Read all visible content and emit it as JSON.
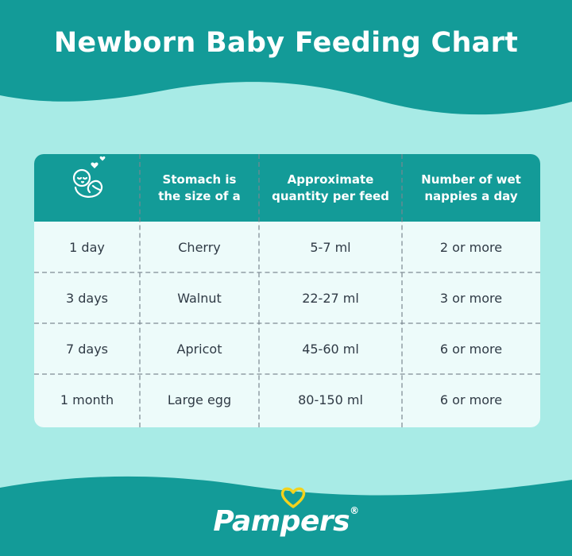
{
  "title": "Newborn Baby Feeding Chart",
  "colors": {
    "teal": "#139b98",
    "light_bg": "#a8ebe6",
    "card_bg": "#edfbfa",
    "text": "#2f3a45",
    "heart_yellow": "#f3d21d"
  },
  "table": {
    "header_icon": "baby-icon",
    "headers": [
      "Stomach is\nthe size of a",
      "Approximate\nquantity per feed",
      "Number of wet\nnappies a day"
    ],
    "rows": [
      {
        "age": "1 day",
        "stomach": "Cherry",
        "quantity": "5-7 ml",
        "nappies": "2 or more"
      },
      {
        "age": "3 days",
        "stomach": "Walnut",
        "quantity": "22-27 ml",
        "nappies": "3 or more"
      },
      {
        "age": "7 days",
        "stomach": "Apricot",
        "quantity": "45-60 ml",
        "nappies": "6 or more"
      },
      {
        "age": "1 month",
        "stomach": "Large egg",
        "quantity": "80-150 ml",
        "nappies": "6 or more"
      }
    ]
  },
  "brand": {
    "logo_text": "Pampers",
    "logo_mark": "®"
  }
}
